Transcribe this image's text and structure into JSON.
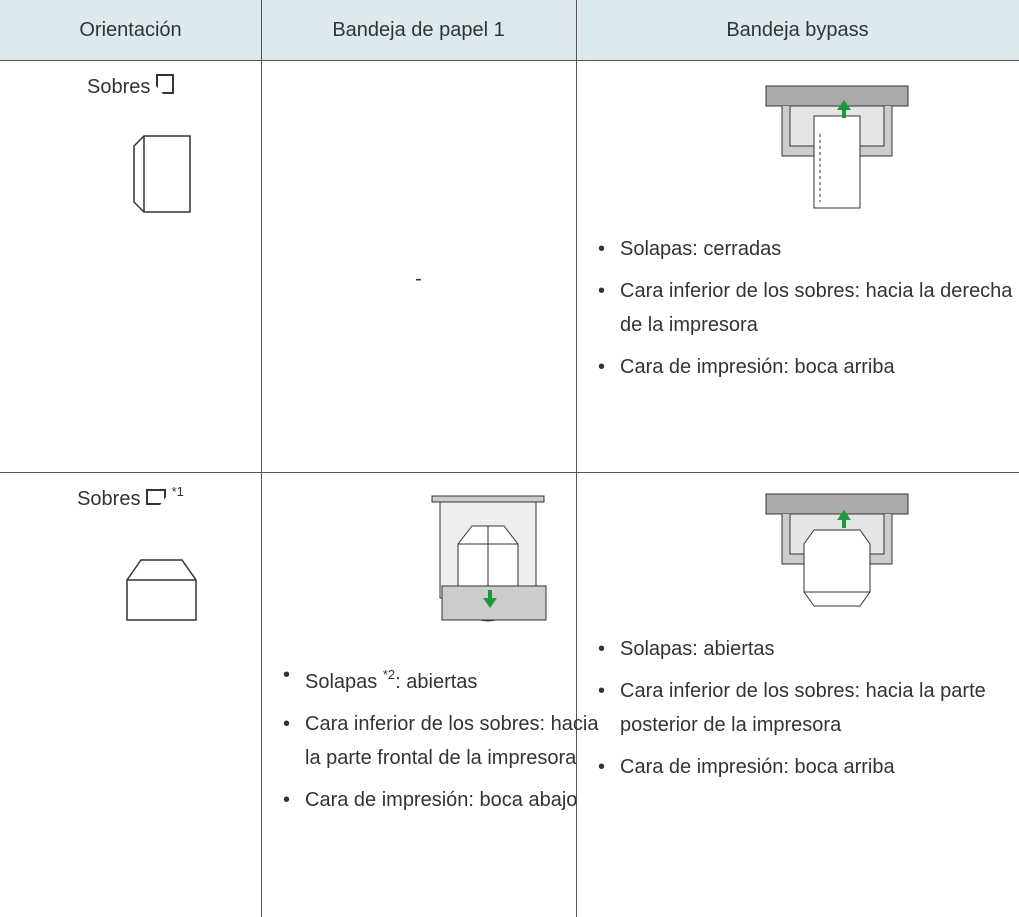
{
  "table": {
    "headers": [
      "Orientación",
      "Bandeja de papel 1",
      "Bandeja bypass"
    ],
    "rows": [
      {
        "orientation": "Sobres",
        "tray1": "-",
        "bypass": [
          "Solapas: cerradas",
          "Cara inferior de los sobres: hacia la derecha de la impresora",
          "Cara de impresión: boca arriba"
        ]
      },
      {
        "orientation": "Sobres",
        "note": "*1",
        "tray1": [
          {
            "text": "Solapas",
            "note": "*2",
            "rest": ": abiertas"
          },
          {
            "text": "Cara inferior de los sobres: hacia la parte frontal de la impresora"
          },
          {
            "text": "Cara de impresión: boca abajo"
          }
        ],
        "bypass": [
          "Solapas: abiertas",
          "Cara inferior de los sobres: hacia la parte posterior de la impresora",
          "Cara de impresión: boca arriba"
        ]
      }
    ]
  }
}
